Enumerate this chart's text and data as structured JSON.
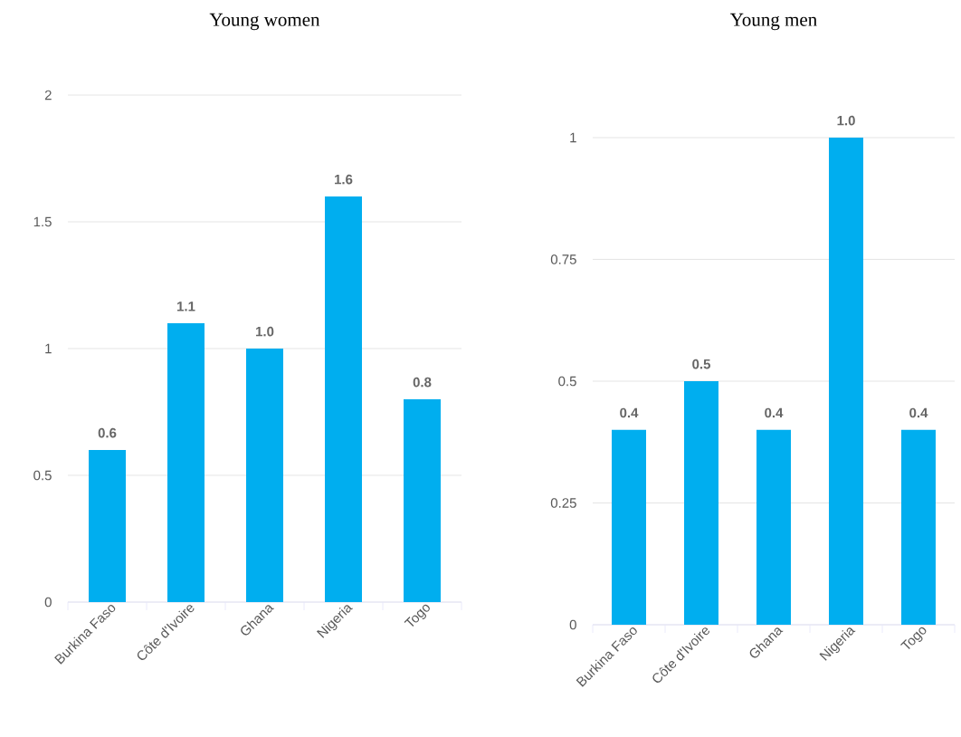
{
  "chart_data": [
    {
      "type": "bar",
      "title": "Young women",
      "categories": [
        "Burkina Faso",
        "Côte d'Ivoire",
        "Ghana",
        "Nigeria",
        "Togo"
      ],
      "values": [
        0.6,
        1.1,
        1.0,
        1.6,
        0.8
      ],
      "value_labels": [
        "0.6",
        "1.1",
        "1.0",
        "1.6",
        "0.8"
      ],
      "color": "#00aeef",
      "ylim": [
        0,
        2
      ],
      "yticks": [
        0,
        0.5,
        1,
        1.5,
        2
      ],
      "grid": "y"
    },
    {
      "type": "bar",
      "title": "Young men",
      "categories": [
        "Burkina Faso",
        "Côte d'Ivoire",
        "Ghana",
        "Nigeria",
        "Togo"
      ],
      "values": [
        0.4,
        0.5,
        0.4,
        1.0,
        0.4
      ],
      "value_labels": [
        "0.4",
        "0.5",
        "0.4",
        "1.0",
        "0.4"
      ],
      "color": "#00aeef",
      "ylim": [
        0,
        1
      ],
      "yticks": [
        0,
        0.25,
        0.5,
        0.75,
        1
      ],
      "grid": "y"
    }
  ]
}
